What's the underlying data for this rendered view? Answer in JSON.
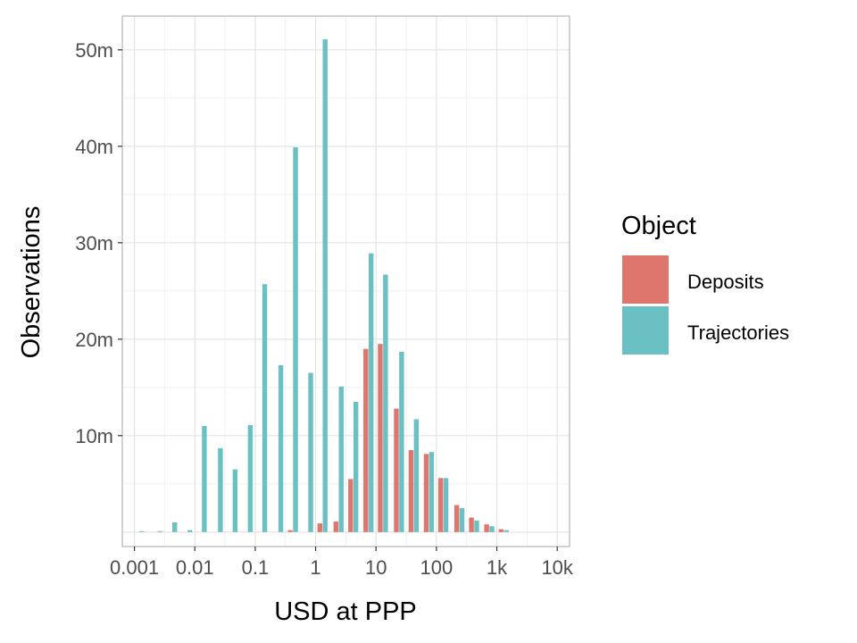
{
  "chart_data": {
    "type": "bar",
    "xlabel": "USD at PPP",
    "ylabel": "Observations",
    "x_scale": "log10",
    "x_ticks": [
      {
        "value": 0.001,
        "label": "0.001"
      },
      {
        "value": 0.01,
        "label": "0.01"
      },
      {
        "value": 0.1,
        "label": "0.1"
      },
      {
        "value": 1,
        "label": "1"
      },
      {
        "value": 10,
        "label": "10"
      },
      {
        "value": 100,
        "label": "100"
      },
      {
        "value": 1000,
        "label": "1k"
      },
      {
        "value": 10000,
        "label": "10k"
      }
    ],
    "y_ticks": [
      {
        "value": 10000000,
        "label": "10m"
      },
      {
        "value": 20000000,
        "label": "20m"
      },
      {
        "value": 30000000,
        "label": "30m"
      },
      {
        "value": 40000000,
        "label": "40m"
      },
      {
        "value": 50000000,
        "label": "50m"
      }
    ],
    "xlim": [
      0.00063,
      16000
    ],
    "ylim": [
      -1500000,
      53500000
    ],
    "grid": true,
    "legend_position": "right",
    "legend_title": "Object",
    "x": [
      0.0012,
      0.0024,
      0.0042,
      0.0075,
      0.013,
      0.024,
      0.042,
      0.075,
      0.13,
      0.24,
      0.42,
      0.75,
      1.3,
      2.4,
      4.2,
      7.5,
      13,
      24,
      42,
      75,
      130,
      240,
      420,
      750,
      1300
    ],
    "series": [
      {
        "name": "Deposits",
        "color": "#de766e",
        "values": [
          0,
          0,
          0,
          0,
          0,
          0,
          0,
          0,
          0,
          0,
          200000,
          0,
          900000,
          1100000,
          5500000,
          19000000,
          19500000,
          12800000,
          8500000,
          8100000,
          5600000,
          2800000,
          1500000,
          800000,
          300000
        ]
      },
      {
        "name": "Trajectories",
        "color": "#6bc0c4",
        "values": [
          100000,
          100000,
          1000000,
          200000,
          11000000,
          8700000,
          6500000,
          11100000,
          25700000,
          17300000,
          39900000,
          16500000,
          51100000,
          15100000,
          13500000,
          28900000,
          26700000,
          18700000,
          11700000,
          8300000,
          5600000,
          2500000,
          1200000,
          600000,
          200000
        ]
      }
    ]
  }
}
